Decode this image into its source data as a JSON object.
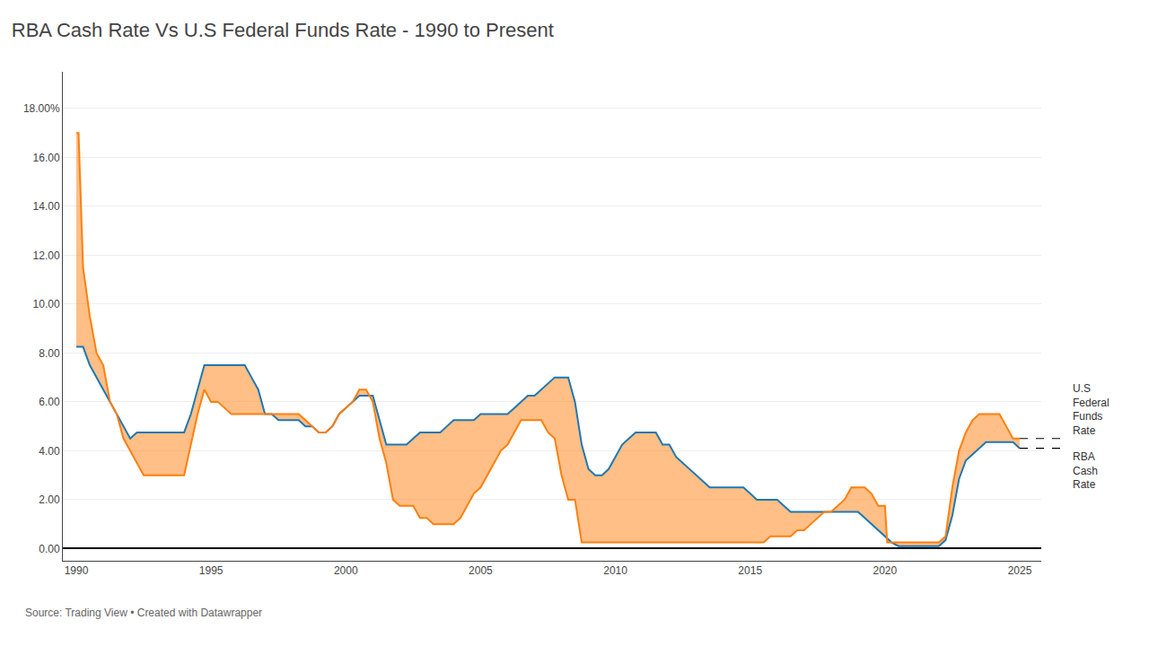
{
  "chart_data": {
    "type": "line",
    "title": "RBA Cash Rate Vs U.S Federal Funds Rate - 1990 to Present",
    "annotations": [
      "Source: Trading View • Created with Datawrapper"
    ],
    "xlim": [
      1989.5,
      2025.8
    ],
    "xticks": [
      1990,
      1995,
      2000,
      2005,
      2010,
      2015,
      2020,
      2025
    ],
    "ylim": [
      -0.5,
      19.5
    ],
    "yticks": [
      {
        "value": 0.0,
        "label": "0.00"
      },
      {
        "value": 2.0,
        "label": "2.00"
      },
      {
        "value": 4.0,
        "label": "4.00"
      },
      {
        "value": 6.0,
        "label": "6.00"
      },
      {
        "value": 8.0,
        "label": "8.00"
      },
      {
        "value": 10.0,
        "label": "10.00"
      },
      {
        "value": 12.0,
        "label": "12.00"
      },
      {
        "value": 14.0,
        "label": "14.00"
      },
      {
        "value": 16.0,
        "label": "16.00"
      },
      {
        "value": 18.0,
        "label": "18.00%"
      }
    ],
    "grid": "y",
    "series": [
      {
        "name": "RBA\nCash\nRate",
        "x": [
          1990.0,
          1990.25,
          1990.5,
          1990.75,
          1991.0,
          1991.25,
          1991.5,
          1991.75,
          1992.0,
          1992.25,
          1992.5,
          1992.75,
          1993.0,
          1993.25,
          1993.5,
          1993.75,
          1994.0,
          1994.25,
          1994.5,
          1994.75,
          1995.0,
          1995.25,
          1995.5,
          1995.75,
          1996.0,
          1996.25,
          1996.5,
          1996.75,
          1997.0,
          1997.25,
          1997.5,
          1997.75,
          1998.0,
          1998.25,
          1998.5,
          1998.75,
          1999.0,
          1999.25,
          1999.5,
          1999.75,
          2000.0,
          2000.25,
          2000.5,
          2000.75,
          2001.0,
          2001.25,
          2001.5,
          2001.75,
          2002.0,
          2002.25,
          2002.5,
          2002.75,
          2003.0,
          2003.25,
          2003.5,
          2003.75,
          2004.0,
          2004.25,
          2004.5,
          2004.75,
          2005.0,
          2005.25,
          2005.5,
          2005.75,
          2006.0,
          2006.25,
          2006.5,
          2006.75,
          2007.0,
          2007.25,
          2007.5,
          2007.75,
          2008.0,
          2008.25,
          2008.5,
          2008.75,
          2009.0,
          2009.25,
          2009.5,
          2009.75,
          2010.0,
          2010.25,
          2010.5,
          2010.75,
          2011.0,
          2011.25,
          2011.5,
          2011.75,
          2012.0,
          2012.25,
          2012.5,
          2012.75,
          2013.0,
          2013.25,
          2013.5,
          2013.75,
          2014.0,
          2014.25,
          2014.5,
          2014.75,
          2015.0,
          2015.25,
          2015.5,
          2015.75,
          2016.0,
          2016.25,
          2016.5,
          2016.75,
          2017.0,
          2017.25,
          2017.5,
          2017.75,
          2018.0,
          2018.25,
          2018.5,
          2018.75,
          2019.0,
          2019.25,
          2019.5,
          2019.75,
          2020.0,
          2020.25,
          2020.5,
          2020.75,
          2021.0,
          2021.25,
          2021.5,
          2021.75,
          2022.0,
          2022.25,
          2022.5,
          2022.75,
          2023.0,
          2023.25,
          2023.5,
          2023.75,
          2024.0,
          2024.25,
          2024.5,
          2024.75,
          2025.0
        ],
        "values": [
          8.25,
          8.25,
          7.5,
          7.0,
          6.5,
          6.0,
          5.5,
          5.0,
          4.5,
          4.75,
          4.75,
          4.75,
          4.75,
          4.75,
          4.75,
          4.75,
          4.75,
          5.5,
          6.5,
          7.5,
          7.5,
          7.5,
          7.5,
          7.5,
          7.5,
          7.5,
          7.0,
          6.5,
          5.5,
          5.5,
          5.25,
          5.25,
          5.25,
          5.25,
          5.0,
          5.0,
          4.75,
          4.75,
          5.0,
          5.5,
          5.75,
          6.0,
          6.25,
          6.25,
          6.25,
          5.25,
          4.25,
          4.25,
          4.25,
          4.25,
          4.5,
          4.75,
          4.75,
          4.75,
          4.75,
          5.0,
          5.25,
          5.25,
          5.25,
          5.25,
          5.5,
          5.5,
          5.5,
          5.5,
          5.5,
          5.75,
          6.0,
          6.25,
          6.25,
          6.5,
          6.75,
          7.0,
          7.0,
          7.0,
          6.0,
          4.25,
          3.25,
          3.0,
          3.0,
          3.25,
          3.75,
          4.25,
          4.5,
          4.75,
          4.75,
          4.75,
          4.75,
          4.25,
          4.25,
          3.75,
          3.5,
          3.25,
          3.0,
          2.75,
          2.5,
          2.5,
          2.5,
          2.5,
          2.5,
          2.5,
          2.25,
          2.0,
          2.0,
          2.0,
          2.0,
          1.75,
          1.5,
          1.5,
          1.5,
          1.5,
          1.5,
          1.5,
          1.5,
          1.5,
          1.5,
          1.5,
          1.5,
          1.25,
          1.0,
          0.75,
          0.5,
          0.25,
          0.1,
          0.1,
          0.1,
          0.1,
          0.1,
          0.1,
          0.1,
          0.35,
          1.35,
          2.85,
          3.6,
          3.85,
          4.1,
          4.35,
          4.35,
          4.35,
          4.35,
          4.35,
          4.1
        ]
      },
      {
        "name": "U.S\nFederal\nFunds\nRate",
        "x": [
          1990.0,
          1990.083,
          1990.25,
          1990.5,
          1990.75,
          1991.0,
          1991.25,
          1991.5,
          1991.75,
          1992.0,
          1992.25,
          1992.5,
          1992.75,
          1993.0,
          1993.25,
          1993.5,
          1993.75,
          1994.0,
          1994.25,
          1994.5,
          1994.75,
          1995.0,
          1995.25,
          1995.5,
          1995.75,
          1996.0,
          1996.25,
          1996.5,
          1996.75,
          1997.0,
          1997.25,
          1997.5,
          1997.75,
          1998.0,
          1998.25,
          1998.5,
          1998.75,
          1999.0,
          1999.25,
          1999.5,
          1999.75,
          2000.0,
          2000.25,
          2000.5,
          2000.75,
          2001.0,
          2001.25,
          2001.5,
          2001.75,
          2002.0,
          2002.25,
          2002.5,
          2002.75,
          2003.0,
          2003.25,
          2003.5,
          2003.75,
          2004.0,
          2004.25,
          2004.5,
          2004.75,
          2005.0,
          2005.25,
          2005.5,
          2005.75,
          2006.0,
          2006.25,
          2006.5,
          2006.75,
          2007.0,
          2007.25,
          2007.5,
          2007.75,
          2008.0,
          2008.25,
          2008.5,
          2008.75,
          2009.0,
          2009.25,
          2009.5,
          2009.75,
          2010.0,
          2010.25,
          2010.5,
          2010.75,
          2011.0,
          2011.25,
          2011.5,
          2011.75,
          2012.0,
          2012.25,
          2012.5,
          2012.75,
          2013.0,
          2013.25,
          2013.5,
          2013.75,
          2014.0,
          2014.25,
          2014.5,
          2014.75,
          2015.0,
          2015.25,
          2015.5,
          2015.75,
          2016.0,
          2016.25,
          2016.5,
          2016.75,
          2017.0,
          2017.25,
          2017.5,
          2017.75,
          2018.0,
          2018.25,
          2018.5,
          2018.75,
          2019.0,
          2019.25,
          2019.5,
          2019.75,
          2020.0,
          2020.083,
          2020.25,
          2020.5,
          2020.75,
          2021.0,
          2021.25,
          2021.5,
          2021.75,
          2022.0,
          2022.25,
          2022.5,
          2022.75,
          2023.0,
          2023.25,
          2023.5,
          2023.75,
          2024.0,
          2024.25,
          2024.5,
          2024.75,
          2025.0
        ],
        "values": [
          17.0,
          17.0,
          11.5,
          9.5,
          8.0,
          7.5,
          6.0,
          5.5,
          4.5,
          4.0,
          3.5,
          3.0,
          3.0,
          3.0,
          3.0,
          3.0,
          3.0,
          3.0,
          4.25,
          5.5,
          6.5,
          6.0,
          6.0,
          5.75,
          5.5,
          5.5,
          5.5,
          5.5,
          5.5,
          5.5,
          5.5,
          5.5,
          5.5,
          5.5,
          5.5,
          5.25,
          5.0,
          4.75,
          4.75,
          5.0,
          5.5,
          5.75,
          6.0,
          6.5,
          6.5,
          6.0,
          4.5,
          3.5,
          2.0,
          1.75,
          1.75,
          1.75,
          1.25,
          1.25,
          1.0,
          1.0,
          1.0,
          1.0,
          1.25,
          1.75,
          2.25,
          2.5,
          3.0,
          3.5,
          4.0,
          4.25,
          4.75,
          5.25,
          5.25,
          5.25,
          5.25,
          4.75,
          4.5,
          3.0,
          2.0,
          2.0,
          0.25,
          0.25,
          0.25,
          0.25,
          0.25,
          0.25,
          0.25,
          0.25,
          0.25,
          0.25,
          0.25,
          0.25,
          0.25,
          0.25,
          0.25,
          0.25,
          0.25,
          0.25,
          0.25,
          0.25,
          0.25,
          0.25,
          0.25,
          0.25,
          0.25,
          0.25,
          0.25,
          0.25,
          0.5,
          0.5,
          0.5,
          0.5,
          0.75,
          0.75,
          1.0,
          1.25,
          1.5,
          1.5,
          1.75,
          2.0,
          2.5,
          2.5,
          2.5,
          2.25,
          1.75,
          1.75,
          0.25,
          0.25,
          0.25,
          0.25,
          0.25,
          0.25,
          0.25,
          0.25,
          0.25,
          0.5,
          2.5,
          4.0,
          4.75,
          5.25,
          5.5,
          5.5,
          5.5,
          5.5,
          5.0,
          4.5,
          4.5
        ]
      }
    ]
  }
}
